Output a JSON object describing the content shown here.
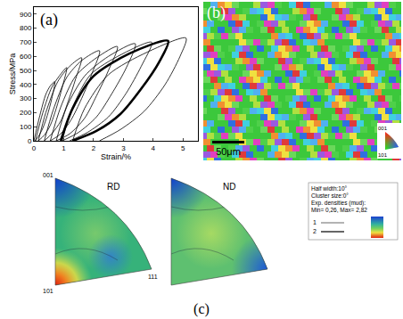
{
  "chart_data": {
    "type": "line",
    "annotations": [
      "(a)"
    ],
    "x_label": "Strain/%",
    "y_label": "Stress/MPa",
    "xlim": [
      0,
      5.5
    ],
    "xticks": [
      0,
      1,
      2,
      3,
      4,
      5
    ],
    "ylim": [
      0,
      950
    ],
    "yticks": [
      0,
      100,
      200,
      300,
      400,
      500,
      600,
      700,
      800,
      900
    ],
    "grid": false,
    "series": [
      {
        "color": "#000000",
        "line_style": "solid",
        "x": [
          0,
          0.2,
          0.4,
          0.55,
          0.7,
          0.6,
          0.45,
          0.3,
          0.15,
          0.05
        ],
        "values": [
          0,
          180,
          330,
          390,
          420,
          300,
          180,
          90,
          30,
          0
        ]
      },
      {
        "color": "#000000",
        "line_style": "solid",
        "x": [
          0.05,
          0.3,
          0.6,
          0.85,
          1.1,
          0.95,
          0.75,
          0.55,
          0.35,
          0.15
        ],
        "values": [
          0,
          200,
          380,
          460,
          520,
          380,
          230,
          110,
          40,
          0
        ]
      },
      {
        "color": "#000000",
        "line_style": "solid",
        "x": [
          0.15,
          0.4,
          0.8,
          1.2,
          1.6,
          1.4,
          1.15,
          0.9,
          0.6,
          0.35
        ],
        "values": [
          0,
          200,
          420,
          530,
          590,
          440,
          280,
          140,
          50,
          0
        ]
      },
      {
        "color": "#000000",
        "line_style": "solid",
        "x": [
          0.35,
          0.65,
          1.1,
          1.6,
          2.2,
          1.95,
          1.6,
          1.25,
          0.9,
          0.55
        ],
        "values": [
          0,
          220,
          450,
          570,
          640,
          480,
          300,
          150,
          50,
          0
        ]
      },
      {
        "color": "#000000",
        "line_style": "solid",
        "x": [
          0.55,
          0.9,
          1.4,
          2.1,
          2.8,
          2.5,
          2.1,
          1.7,
          1.2,
          0.75
        ],
        "values": [
          0,
          240,
          460,
          590,
          670,
          500,
          320,
          160,
          50,
          0
        ]
      },
      {
        "color": "#000000",
        "line_style": "solid",
        "x": [
          0.75,
          1.1,
          1.7,
          2.5,
          3.4,
          3.1,
          2.6,
          2.1,
          1.5,
          0.95
        ],
        "values": [
          0,
          240,
          460,
          600,
          690,
          520,
          330,
          170,
          60,
          0
        ]
      },
      {
        "color": "#000000",
        "line_style": "solid",
        "x": [
          0.95,
          1.3,
          1.9,
          2.9,
          3.95,
          3.6,
          3.1,
          2.5,
          1.8,
          1.2
        ],
        "values": [
          0,
          240,
          470,
          610,
          700,
          530,
          340,
          170,
          60,
          0
        ]
      },
      {
        "color": "#000000",
        "line_style": "bold",
        "x": [
          0.9,
          1.3,
          2.0,
          3.2,
          4.5,
          4.2,
          3.6,
          2.9,
          2.1,
          1.3
        ],
        "values": [
          0,
          230,
          460,
          620,
          710,
          560,
          370,
          190,
          70,
          0
        ]
      },
      {
        "color": "#000000",
        "line_style": "solid",
        "x": [
          1.3,
          1.7,
          2.5,
          3.8,
          5.1,
          4.9,
          4.4,
          3.7,
          2.9,
          2.2
        ],
        "values": [
          0,
          230,
          470,
          630,
          730,
          600,
          400,
          210,
          80,
          0
        ]
      }
    ]
  },
  "ebsd_map": {
    "label": "(b)",
    "scale_bar": "50μm",
    "color_key": [
      "001",
      "101"
    ]
  },
  "pole_figures": {
    "label": "(c)",
    "figures": [
      {
        "title": "RD",
        "corners": [
          "001",
          "101",
          "111"
        ]
      },
      {
        "title": "ND"
      }
    ],
    "legend": {
      "lines": [
        "Half width:10°",
        "Cluster size:0°",
        "Exp. densities (mud):",
        "Min= 0,26, Max= 2,82"
      ],
      "levels": [
        1,
        2
      ]
    }
  }
}
